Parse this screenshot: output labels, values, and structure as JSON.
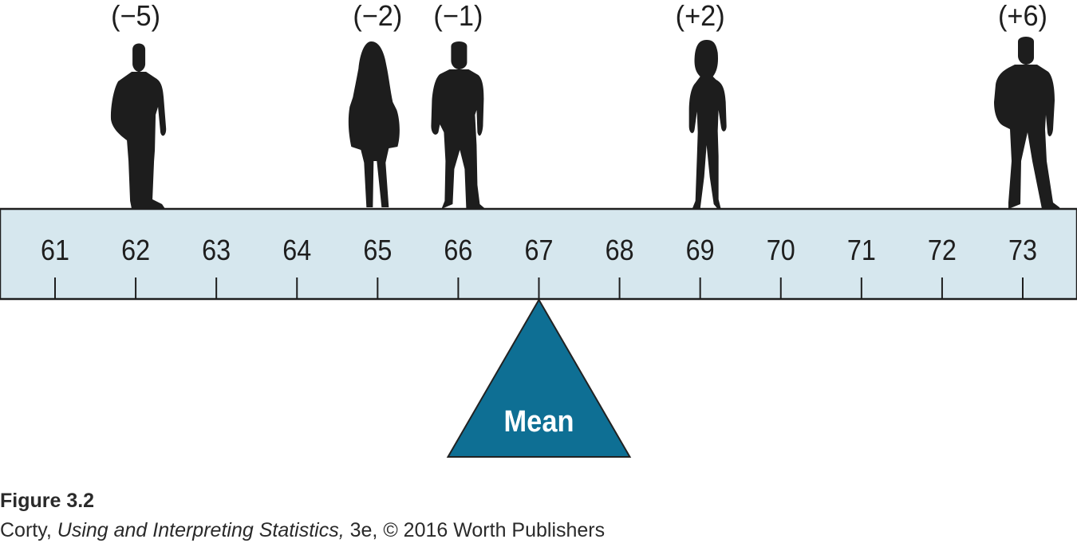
{
  "diagram": {
    "scale": {
      "ticks": [
        61,
        62,
        63,
        64,
        65,
        66,
        67,
        68,
        69,
        70,
        71,
        72,
        73
      ]
    },
    "people": [
      {
        "value": 62,
        "deviation": "(−5)",
        "figure": "man-standing-silhouette"
      },
      {
        "value": 65,
        "deviation": "(−2)",
        "figure": "woman-coat-silhouette"
      },
      {
        "value": 66,
        "deviation": "(−1)",
        "figure": "man-casual-silhouette"
      },
      {
        "value": 69,
        "deviation": "(+2)",
        "figure": "woman-slim-silhouette"
      },
      {
        "value": 73,
        "deviation": "(+6)",
        "figure": "man-suit-silhouette"
      }
    ],
    "fulcrum": {
      "label": "Mean",
      "value": 67
    },
    "colors": {
      "beam": "#d6e7ee",
      "beam_border": "#1e1e1e",
      "fulcrum": "#0e6f94",
      "silhouette": "#1d1d1d"
    }
  },
  "caption": {
    "figure_label": "Figure 3.2",
    "author": "Corty, ",
    "book_title": "Using and Interpreting Statistics,",
    "edition_credit": " 3e, © 2016 Worth Publishers"
  }
}
